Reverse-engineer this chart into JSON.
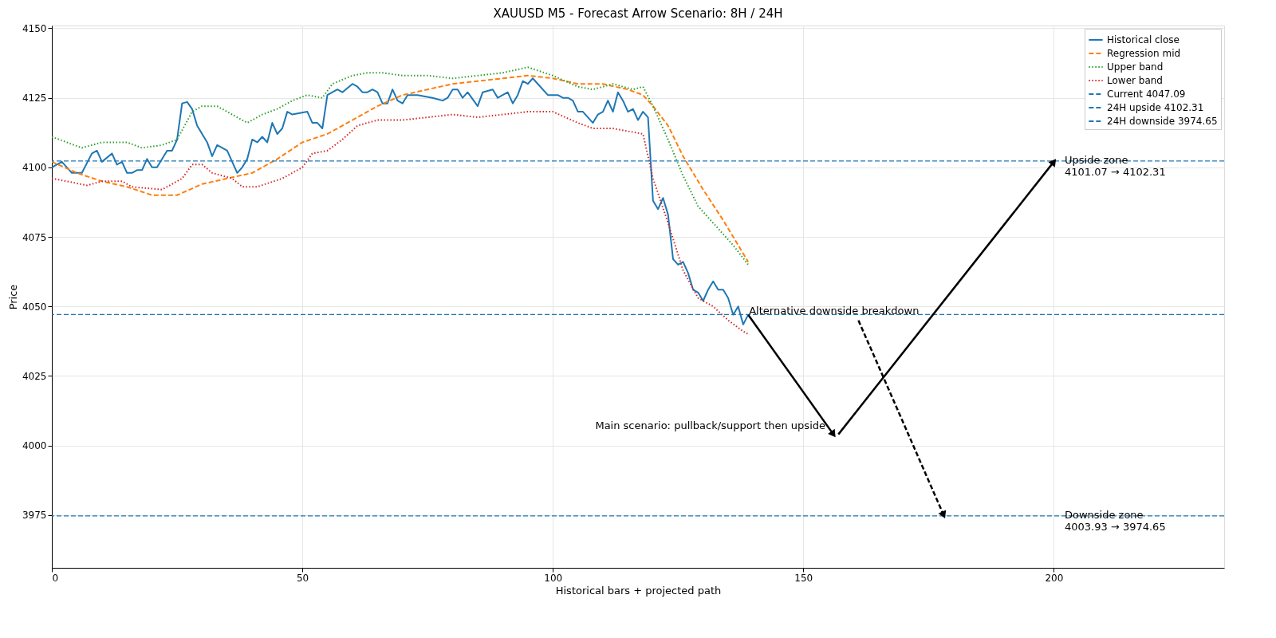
{
  "chart_data": {
    "type": "line",
    "title": "XAUUSD M5 - Forecast Arrow Scenario: 8H / 24H",
    "xlabel": "Historical bars + projected path",
    "ylabel": "Price",
    "xlim": [
      0,
      234
    ],
    "ylim": [
      3956,
      4151
    ],
    "xticks": [
      0,
      50,
      100,
      150,
      200
    ],
    "yticks": [
      3975,
      4000,
      4025,
      4050,
      4075,
      4100,
      4125,
      4150
    ],
    "grid": true,
    "legend": "top right",
    "series": [
      {
        "name": "Historical close",
        "color": "#1f77b4",
        "line_style": "solid",
        "x": [
          0,
          2,
          4,
          6,
          8,
          9,
          10,
          12,
          13,
          14,
          15,
          16,
          17,
          18,
          19,
          20,
          21,
          23,
          24,
          25,
          26,
          27,
          28,
          29,
          31,
          32,
          33,
          34,
          35,
          36,
          37,
          38,
          39,
          40,
          41,
          42,
          43,
          44,
          45,
          46,
          47,
          48,
          51,
          52,
          53,
          54,
          55,
          57,
          58,
          60,
          61,
          62,
          63,
          64,
          65,
          66,
          67,
          68,
          69,
          70,
          71,
          73,
          76,
          78,
          79,
          80,
          81,
          82,
          83,
          85,
          86,
          88,
          89,
          91,
          92,
          93,
          94,
          95,
          96,
          97,
          99,
          101,
          102,
          103,
          104,
          105,
          106,
          108,
          109,
          110,
          111,
          112,
          113,
          114,
          115,
          116,
          117,
          118,
          119,
          120,
          121,
          122,
          123,
          124,
          125,
          126,
          127,
          128,
          129,
          130,
          131,
          132,
          133,
          134,
          135,
          136,
          137,
          138,
          139
        ],
        "values": [
          4100,
          4102,
          4098,
          4098,
          4105,
          4106,
          4102,
          4105,
          4101,
          4102,
          4098,
          4098,
          4099,
          4099,
          4103,
          4100,
          4100,
          4106,
          4106,
          4110,
          4123,
          4123.5,
          4121,
          4115,
          4109,
          4104,
          4108,
          4107,
          4106,
          4102,
          4098,
          4100,
          4103,
          4110,
          4109,
          4111,
          4109,
          4116,
          4112,
          4114,
          4120,
          4119,
          4120,
          4116,
          4116,
          4114,
          4126,
          4128,
          4127,
          4130,
          4129,
          4127,
          4127,
          4128,
          4127,
          4123,
          4123,
          4128,
          4124,
          4123,
          4126,
          4126,
          4125,
          4124,
          4125,
          4128,
          4128,
          4125,
          4127,
          4122,
          4127,
          4128,
          4125,
          4127,
          4123,
          4126,
          4131,
          4130,
          4132,
          4130,
          4126,
          4126,
          4125,
          4125,
          4124,
          4120,
          4120,
          4116,
          4119,
          4120,
          4124,
          4120,
          4127,
          4124,
          4120,
          4121,
          4117,
          4120,
          4118,
          4088,
          4085,
          4089,
          4083,
          4067,
          4065,
          4066,
          4062,
          4056,
          4055,
          4052,
          4056,
          4059,
          4056,
          4056,
          4053,
          4047,
          4050,
          4043.5,
          4047
        ]
      },
      {
        "name": "Regression mid",
        "color": "#ff7f0e",
        "line_style": "dashed",
        "x": [
          0,
          5,
          10,
          15,
          20,
          25,
          30,
          35,
          40,
          45,
          50,
          55,
          60,
          65,
          70,
          75,
          80,
          85,
          90,
          95,
          100,
          105,
          110,
          115,
          118,
          120,
          123,
          126,
          130,
          134,
          139
        ],
        "values": [
          4102,
          4098,
          4095,
          4093,
          4090,
          4090,
          4094,
          4096,
          4098,
          4103,
          4109,
          4112,
          4117,
          4122,
          4126,
          4128,
          4130,
          4131,
          4132,
          4133,
          4132,
          4130,
          4130,
          4128,
          4126,
          4122,
          4115,
          4104,
          4092,
          4081,
          4066
        ]
      },
      {
        "name": "Upper band",
        "color": "#2ca02c",
        "line_style": "dotted",
        "x": [
          0,
          6,
          10,
          15,
          18,
          22,
          25,
          28,
          30,
          33,
          37,
          39,
          42,
          45,
          48,
          51,
          54,
          56,
          60,
          63,
          66,
          70,
          75,
          80,
          85,
          90,
          95,
          100,
          105,
          108,
          110,
          112,
          116,
          118,
          120,
          123,
          126,
          129,
          133,
          136,
          139
        ],
        "values": [
          4111,
          4107,
          4109,
          4109,
          4107,
          4108,
          4110,
          4120,
          4122,
          4122,
          4118,
          4116,
          4119,
          4121,
          4124,
          4126,
          4125,
          4130,
          4133,
          4134,
          4134,
          4133,
          4133,
          4132,
          4133,
          4134,
          4136,
          4133,
          4129,
          4128,
          4129,
          4130,
          4128,
          4129,
          4122,
          4110,
          4097,
          4086,
          4078,
          4072,
          4065
        ]
      },
      {
        "name": "Lower band",
        "color": "#d62728",
        "line_style": "dotted",
        "x": [
          0,
          3,
          7,
          10,
          14,
          16,
          22,
          26,
          28,
          30,
          32,
          36,
          38,
          41,
          46,
          50,
          52,
          55,
          58,
          61,
          65,
          70,
          75,
          80,
          85,
          90,
          95,
          100,
          105,
          108,
          112,
          115,
          118,
          120,
          123,
          126,
          129,
          132,
          135,
          138,
          139
        ],
        "values": [
          4096,
          4095,
          4093.5,
          4095,
          4095,
          4093,
          4092,
          4096,
          4101,
          4101,
          4098,
          4096,
          4093,
          4093,
          4096,
          4100,
          4105,
          4106,
          4110,
          4115,
          4117,
          4117,
          4118,
          4119,
          4118,
          4119,
          4120,
          4120,
          4116,
          4114,
          4114,
          4113,
          4112,
          4096,
          4080,
          4063,
          4053,
          4050,
          4045,
          4041,
          4040
        ]
      },
      {
        "color": "#000000",
        "line_style": "solid",
        "marker": "triangle",
        "x": [
          139,
          156
        ],
        "values": [
          4047,
          4004
        ]
      },
      {
        "color": "#000000",
        "line_style": "solid",
        "marker": "triangle",
        "x": [
          157,
          200
        ],
        "values": [
          4004,
          4102
        ]
      },
      {
        "color": "#000000",
        "line_style": "dashed",
        "marker": "triangle",
        "x": [
          161,
          178
        ],
        "values": [
          4045,
          3975
        ]
      }
    ],
    "ref_lines": [
      {
        "axis": "y",
        "value": 4047.09,
        "label": "Current 4047.09",
        "color": "#1f77b4",
        "line_style": "dashed"
      },
      {
        "axis": "y",
        "value": 4102.31,
        "label": "24H upside 4102.31",
        "color": "#1f77b4",
        "line_style": "dashed"
      },
      {
        "axis": "y",
        "value": 3974.65,
        "label": "24H downside 3974.65",
        "color": "#1f77b4",
        "line_style": "dashed"
      }
    ],
    "annotations": [
      {
        "text": "Alternative downside breakdown",
        "x": 139,
        "y": 4046
      },
      {
        "text": "Main scenario: pullback/support then upside",
        "x": 156,
        "y": 4004
      },
      {
        "text": "Upside zone\n4101.07 → 4102.31",
        "x": 202,
        "y": 4102.31
      },
      {
        "text": "Downside zone\n4003.93 → 3974.65",
        "x": 202,
        "y": 3974.65
      }
    ]
  }
}
